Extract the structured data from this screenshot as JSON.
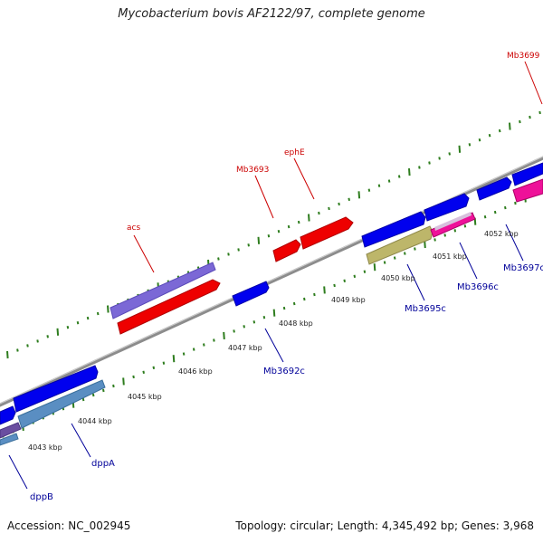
{
  "title": "Mycobacterium bovis AF2122/97, complete genome",
  "footer": {
    "accession": "Accession: NC_002945",
    "summary": "Topology: circular; Length: 4,345,492 bp; Genes: 3,968"
  },
  "colors": {
    "backbone": "#8c8c8c",
    "tick": "#2e7d1e",
    "forward_label": "#cc0000",
    "reverse_label": "#000099"
  },
  "kbp_labels": [
    "4043 kbp",
    "4044 kbp",
    "4045 kbp",
    "4046 kbp",
    "4047 kbp",
    "4048 kbp",
    "4049 kbp",
    "4050 kbp",
    "4051 kbp",
    "4052 kbp"
  ],
  "forward_gene_labels": [
    "acs",
    "Mb3693",
    "ephE",
    "Mb3699"
  ],
  "reverse_gene_labels": [
    "dppB",
    "dppA",
    "Mb3692c",
    "Mb3695c",
    "Mb3696c",
    "Mb3697c"
  ]
}
